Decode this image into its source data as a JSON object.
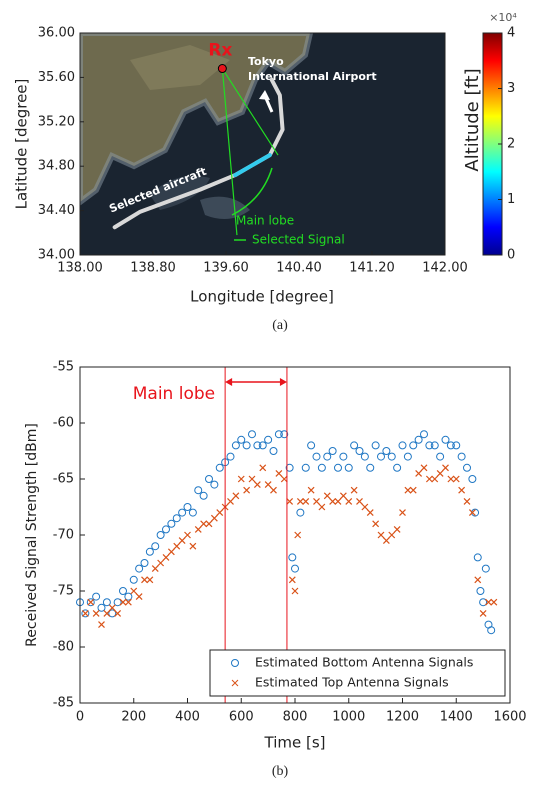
{
  "chart_data": [
    {
      "type": "map",
      "xlabel": "Longitude [degree]",
      "ylabel": "Latitude [degree]",
      "caption": "(a)",
      "xlim": [
        138,
        142
      ],
      "ylim": [
        34,
        36
      ],
      "xticks": [
        {
          "value": 138,
          "label": "138.00"
        },
        {
          "value": 138.8,
          "label": "138.80"
        },
        {
          "value": 139.6,
          "label": "139.60"
        },
        {
          "value": 140.4,
          "label": "140.40"
        },
        {
          "value": 141.2,
          "label": "141.20"
        },
        {
          "value": 142,
          "label": "142.00"
        }
      ],
      "yticks": [
        {
          "value": 34,
          "label": "34.00"
        },
        {
          "value": 34.4,
          "label": "34.40"
        },
        {
          "value": 34.8,
          "label": "34.80"
        },
        {
          "value": 35.2,
          "label": "35.20"
        },
        {
          "value": 35.6,
          "label": "35.60"
        },
        {
          "value": 36,
          "label": "36.00"
        }
      ],
      "rx": {
        "label": "Rx",
        "x": 139.56,
        "y": 35.68,
        "color": "#e8141c"
      },
      "track": {
        "x": [
          138.38,
          138.66,
          139.32,
          139.7,
          140.08,
          140.22,
          140.19,
          140.1
        ],
        "y": [
          34.25,
          34.39,
          34.59,
          34.72,
          34.9,
          35.13,
          35.44,
          35.58
        ],
        "color": "#d9d9d9"
      },
      "selected": {
        "x": [
          139.7,
          140.08
        ],
        "y": [
          34.72,
          34.9
        ],
        "color": "#33ccee"
      },
      "lobe_edges": {
        "x": [
          139.72,
          140.17
        ],
        "y": [
          34.18,
          34.9
        ],
        "color": "#22dd22"
      },
      "annotations": [
        "Tokyo",
        "International Airport",
        "Selected aircraft",
        "Main lobe",
        "Selected Signal"
      ],
      "colorbar": {
        "label": "Altitude [ft]",
        "lim": [
          0,
          4
        ],
        "ticks": [
          0,
          1,
          2,
          3,
          4
        ],
        "multiplier": "×10⁴"
      }
    },
    {
      "type": "scatter",
      "xlabel": "Time [s]",
      "ylabel": "Received Signal Strength [dBm]",
      "caption": "(b)",
      "xlim": [
        0,
        1600
      ],
      "ylim": [
        -85,
        -55
      ],
      "xticks": [
        0,
        200,
        400,
        600,
        800,
        1000,
        1200,
        1400,
        1600
      ],
      "yticks": [
        -85,
        -80,
        -75,
        -70,
        -65,
        -60,
        -55
      ],
      "legend": "lower right",
      "annotation": "Main lobe",
      "markers": [
        540,
        770
      ],
      "marker_color": "#e8141c",
      "series": [
        {
          "name": "Estimated Bottom Antenna Signals",
          "color": "#1f77c4",
          "marker": "circle",
          "x": [
            0,
            20,
            40,
            60,
            80,
            100,
            120,
            140,
            160,
            180,
            200,
            220,
            240,
            260,
            280,
            300,
            320,
            340,
            360,
            380,
            400,
            420,
            440,
            460,
            480,
            500,
            520,
            540,
            560,
            580,
            600,
            620,
            640,
            660,
            680,
            700,
            720,
            740,
            760,
            780,
            790,
            800,
            820,
            840,
            860,
            880,
            900,
            920,
            940,
            960,
            980,
            1000,
            1020,
            1040,
            1060,
            1080,
            1100,
            1120,
            1140,
            1160,
            1180,
            1200,
            1220,
            1240,
            1260,
            1280,
            1300,
            1320,
            1340,
            1360,
            1380,
            1400,
            1420,
            1440,
            1460,
            1470,
            1480,
            1490,
            1500,
            1510,
            1520,
            1530
          ],
          "values": [
            -76,
            -77,
            -76,
            -75.5,
            -76.5,
            -76,
            -77,
            -76,
            -75,
            -75.5,
            -74,
            -73,
            -72.5,
            -71.5,
            -71,
            -70,
            -69.5,
            -69,
            -68.5,
            -68,
            -67.5,
            -68,
            -66,
            -66.5,
            -65,
            -65.5,
            -64,
            -63.5,
            -63,
            -62,
            -61.5,
            -62,
            -61,
            -62,
            -62,
            -61.5,
            -62.5,
            -61,
            -61,
            -64,
            -72,
            -73,
            -68,
            -64,
            -62,
            -63,
            -64,
            -63,
            -62.5,
            -64,
            -63,
            -64,
            -62,
            -62.5,
            -63,
            -64,
            -62,
            -63,
            -62.5,
            -63,
            -64,
            -62,
            -63,
            -62,
            -61.5,
            -61,
            -62,
            -62,
            -63,
            -61.5,
            -62,
            -62,
            -63,
            -64,
            -65,
            -68,
            -72,
            -75,
            -76,
            -73,
            -78,
            -78.5
          ]
        },
        {
          "name": "Estimated Top Antenna Signals",
          "color": "#d95319",
          "marker": "x",
          "x": [
            20,
            40,
            60,
            80,
            100,
            120,
            140,
            160,
            180,
            200,
            220,
            240,
            260,
            280,
            300,
            320,
            340,
            360,
            380,
            400,
            420,
            440,
            460,
            480,
            500,
            520,
            540,
            560,
            580,
            600,
            620,
            640,
            660,
            680,
            700,
            720,
            740,
            760,
            780,
            790,
            800,
            810,
            820,
            840,
            860,
            880,
            900,
            920,
            940,
            960,
            980,
            1000,
            1020,
            1040,
            1060,
            1080,
            1100,
            1120,
            1140,
            1160,
            1180,
            1200,
            1220,
            1240,
            1260,
            1280,
            1300,
            1320,
            1340,
            1360,
            1380,
            1400,
            1420,
            1440,
            1460,
            1480,
            1500,
            1520,
            1540
          ],
          "values": [
            -77,
            -76,
            -77,
            -78,
            -77,
            -76.5,
            -77,
            -76,
            -76,
            -75,
            -75.5,
            -74,
            -74,
            -73,
            -72.5,
            -72,
            -71.5,
            -71,
            -70.5,
            -70,
            -71,
            -69.5,
            -69,
            -69,
            -68.5,
            -68,
            -67.5,
            -67,
            -66.5,
            -65,
            -66,
            -65,
            -65.5,
            -64,
            -65.5,
            -66,
            -64.5,
            -65,
            -67,
            -74,
            -75,
            -70,
            -67,
            -67,
            -66,
            -67,
            -67.5,
            -66.5,
            -67,
            -67,
            -66.5,
            -67,
            -66,
            -67,
            -67.5,
            -68,
            -69,
            -70,
            -70.5,
            -70,
            -69.5,
            -68,
            -66,
            -66,
            -64.5,
            -64,
            -65,
            -65,
            -64.5,
            -64,
            -65,
            -65,
            -66,
            -67,
            -68,
            -74,
            -77,
            -76,
            -76
          ]
        }
      ]
    }
  ]
}
